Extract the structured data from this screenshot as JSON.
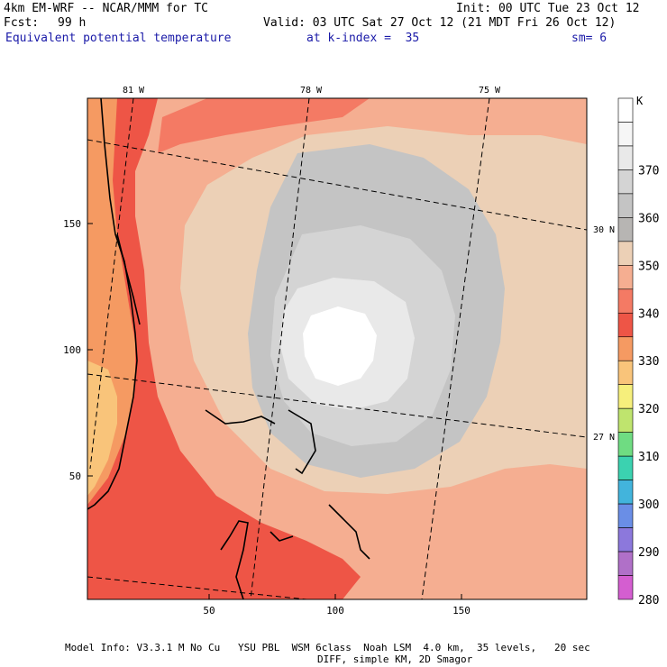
{
  "header": {
    "model": "4km EM-WRF -- NCAR/MMM for TC",
    "init": "Init: 00 UTC Tue 23 Oct 12",
    "fcst_label": "Fcst:",
    "fcst_value": "99 h",
    "valid": "Valid: 03 UTC Sat 27 Oct 12 (21 MDT Fri 26 Oct 12)",
    "field": "Equivalent potential temperature",
    "level": "at k-index =  35",
    "smoothing": "sm= 6"
  },
  "axes": {
    "x_ticks": [
      "50",
      "100",
      "150"
    ],
    "y_ticks": [
      "150",
      "100",
      "50"
    ],
    "lon_labels": [
      "81 W",
      "78 W",
      "75 W"
    ],
    "lat_labels": [
      "30 N",
      "27 N"
    ]
  },
  "colorbar": {
    "unit": "K",
    "labels": [
      "370",
      "360",
      "350",
      "340",
      "330",
      "320",
      "310",
      "300",
      "290",
      "280"
    ],
    "colors": [
      "#ffffff",
      "#f6f6f6",
      "#e9e9e9",
      "#d4d4d4",
      "#c4c4c4",
      "#b7b5b3",
      "#ecd0b6",
      "#f5ae91",
      "#f47a64",
      "#ee5546",
      "#f59a62",
      "#f9c47a",
      "#f6ef7c",
      "#bfe46e",
      "#6fdc82",
      "#3bd2b0",
      "#42b4dc",
      "#6a8ee6",
      "#8c78dc",
      "#b070c8",
      "#d45ed0"
    ],
    "colors_note": "bottom-to-top order reversed in list: index 0 is top"
  },
  "map_colors": {
    "bg": "#ecd0b6",
    "salmon": "#f5ae91",
    "red": "#ee5546",
    "deep_red": "#e9553f",
    "orange": "#f59a62",
    "tan": "#f9c47a",
    "grey1": "#c4c4c4",
    "grey2": "#d4d4d4",
    "grey3": "#e9e9e9",
    "white": "#ffffff"
  },
  "footer": {
    "line1": "Model Info: V3.3.1 M No Cu   YSU PBL  WSM 6class  Noah LSM  4.0 km,  35 levels,   20 sec",
    "line2": "DIFF, simple KM, 2D Smagor"
  }
}
